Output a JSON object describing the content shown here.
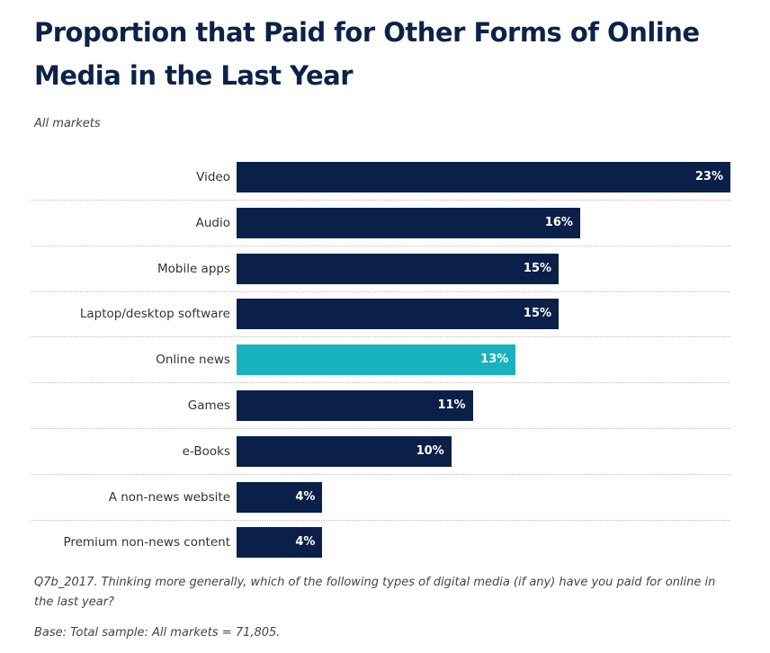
{
  "chart_data": {
    "type": "bar",
    "orientation": "horizontal",
    "title": "Proportion that Paid for Other Forms of Online Media in the Last Year",
    "subtitle": "All markets",
    "categories": [
      "Video",
      "Audio",
      "Mobile apps",
      "Laptop/desktop software",
      "Online news",
      "Games",
      "e-Books",
      "A non-news website",
      "Premium non-news content"
    ],
    "values": [
      23,
      16,
      15,
      15,
      13,
      11,
      10,
      4,
      4
    ],
    "value_labels": [
      "23%",
      "16%",
      "15%",
      "15%",
      "13%",
      "11%",
      "10%",
      "4%",
      "4%"
    ],
    "highlight_index": 4,
    "xlim": [
      0,
      23
    ],
    "grid": false,
    "colors": {
      "default": "#0b2048",
      "highlight": "#17b2bd"
    }
  },
  "notes": {
    "question": "Q7b_2017. Thinking more generally, which of the following types of digital media (if any) have you paid for online in the last year?",
    "base": "Base: Total sample: All markets = 71,805."
  }
}
